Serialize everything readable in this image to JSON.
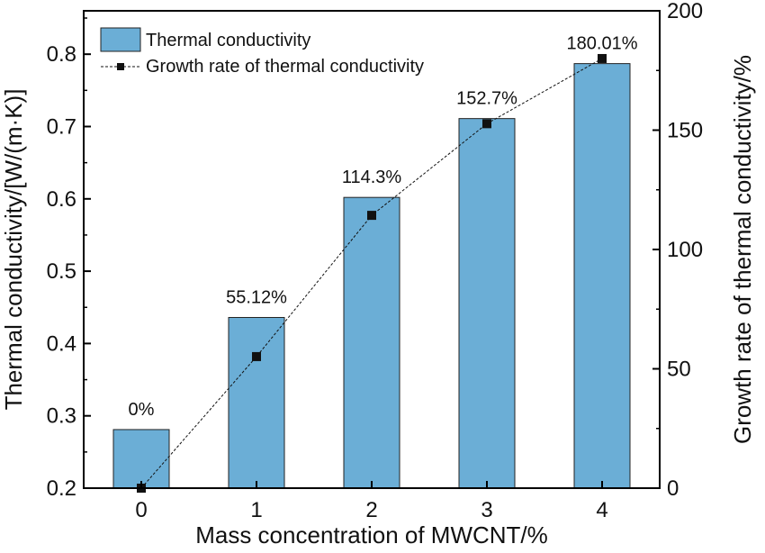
{
  "chart_data": {
    "type": "bar+line",
    "categories": [
      "0",
      "1",
      "2",
      "3",
      "4"
    ],
    "xlabel": "Mass concentration of MWCNT/%",
    "ylabel_left": "Thermal conductivity/[W/(m·K)]",
    "ylabel_right": "Growth rate of thermal conductivity/%",
    "ylim_left": [
      0.2,
      0.86
    ],
    "ylim_right": [
      0,
      200
    ],
    "yticks_left": [
      "0.2",
      "0.3",
      "0.4",
      "0.5",
      "0.6",
      "0.7",
      "0.8"
    ],
    "yticks_right": [
      "0",
      "50",
      "100",
      "150",
      "200"
    ],
    "series": [
      {
        "name": "Thermal conductivity",
        "type": "bar",
        "axis": "left",
        "values": [
          0.281,
          0.436,
          0.602,
          0.711,
          0.787
        ],
        "color": "#6baed6"
      },
      {
        "name": "Growth rate of thermal conductivity",
        "type": "line",
        "axis": "right",
        "values": [
          0,
          55.12,
          114.3,
          152.7,
          180.01
        ],
        "labels": [
          "0%",
          "55.12%",
          "114.3%",
          "152.7%",
          "180.01%"
        ],
        "color": "#111111"
      }
    ],
    "legend_position": "top-left",
    "grid": false
  }
}
